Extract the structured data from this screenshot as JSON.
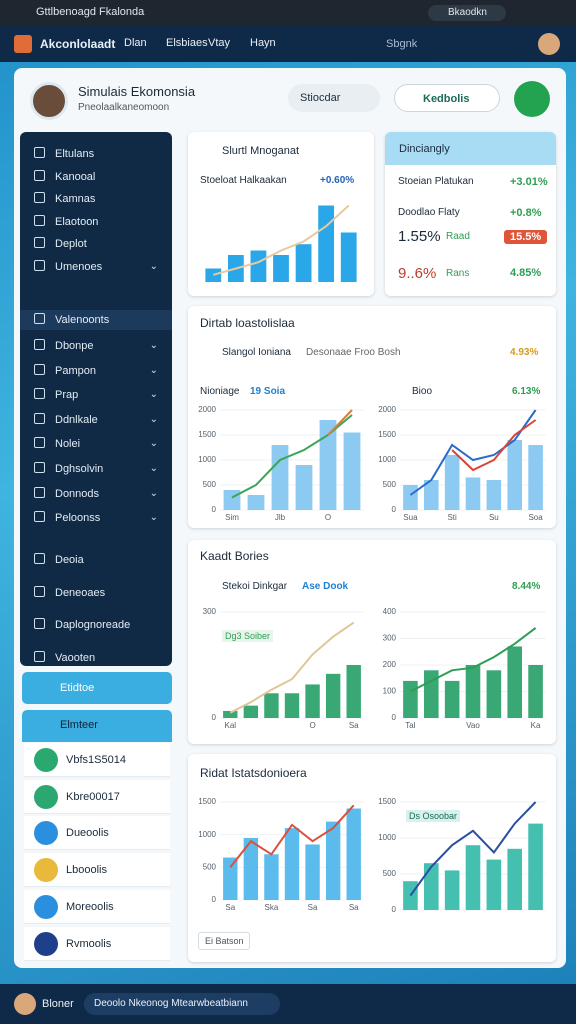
{
  "browser": {
    "tab": "Gttlbenoagd Fkalonda",
    "profile": "Bkaodkn"
  },
  "nav": {
    "brand": "Akconlolaadt",
    "links": [
      "Dlan",
      "Elsbiaes",
      "Vtay",
      "Hayn"
    ],
    "search": "Sbgnk"
  },
  "header": {
    "title": "Simulais Ekomonsia",
    "subtitle": "Pneolaalkaneomoon",
    "button": "Stiocdar",
    "select": "Kedbolis"
  },
  "sidebar": {
    "items": [
      "Eltulans",
      "Kanooal",
      "Kamnas",
      "Elaotoon",
      "Deplot",
      "Umenoes"
    ],
    "section": "Valenoonts",
    "groups": [
      "Dbonpe",
      "Pampon",
      "Prap",
      "Ddnlkale",
      "Nolei",
      "Dghsolvin",
      "Donnods",
      "Peloonss"
    ],
    "extra": [
      "Deoia",
      "Deneoaes",
      "Daplognoreade",
      "Vaooten"
    ]
  },
  "cards": {
    "active": "Etidtoe",
    "header": "Elmteer",
    "items": [
      "Vbfs1S5014",
      "Kbre00017",
      "Dueoolis",
      "Lbooolis",
      "Moreoolis",
      "Rvmoolis"
    ]
  },
  "panels": [
    {
      "title": "Slurtl Mnoganat",
      "label": "Stoeloat Halkaakan",
      "change": "+0.60%",
      "chart": {
        "type": "bar",
        "categories": [
          null,
          null,
          null,
          null,
          null,
          null,
          null
        ],
        "ylim": [
          0,
          100
        ],
        "series": [
          {
            "type": "bar",
            "color": "#2aa7e8",
            "values": [
              15,
              30,
              35,
              30,
              42,
              85,
              55
            ]
          },
          {
            "type": "line",
            "color": "#e8c9a0",
            "values": [
              8,
              15,
              22,
              35,
              45,
              62,
              85
            ]
          }
        ]
      }
    },
    {
      "title": "Dinciangly",
      "rows": [
        {
          "label": "Stoeian Platukan",
          "value": "+3.01%"
        },
        {
          "label": "Doodlao Flaty",
          "value": "+0.8%"
        },
        {
          "label": "1.55%",
          "tag": "Raad",
          "value": "15.5%"
        },
        {
          "label": "9..6%",
          "tag": "Rans",
          "value": "4.85%"
        }
      ]
    },
    {
      "title": "Dirtab loastolislaa",
      "subtitle": "Slangol Ioniana",
      "note": "Desonaae Froo Bosh",
      "change": "4.93%",
      "charts": [
        {
          "type": "bar",
          "label": "Nioniage",
          "tag": "19 Soia",
          "categories": [
            "Sim",
            null,
            "Jlb",
            null,
            "O",
            null
          ],
          "ylim": [
            0,
            2000
          ],
          "yticks": [
            0,
            500,
            1000,
            1500,
            2000
          ],
          "series": [
            {
              "type": "bar",
              "color": "#8ccaf2",
              "values": [
                400,
                300,
                1300,
                900,
                1800,
                1550
              ]
            },
            {
              "type": "line",
              "color": "#3aa655",
              "values": [
                250,
                500,
                1000,
                1200,
                1500,
                1900
              ]
            },
            {
              "type": "line",
              "color": "#e07a3a",
              "values": [
                null,
                null,
                null,
                null,
                1500,
                2000
              ]
            }
          ]
        },
        {
          "type": "bar",
          "label": "Bioo",
          "change": "6.13%",
          "categories": [
            "Sua",
            null,
            "Sti",
            null,
            "Su",
            null,
            "Soa"
          ],
          "ylim": [
            0,
            2000
          ],
          "yticks": [
            0,
            500,
            1000,
            1500,
            2000
          ],
          "series": [
            {
              "type": "bar",
              "color": "#8ccaf2",
              "values": [
                500,
                600,
                1100,
                650,
                600,
                1400,
                1300
              ]
            },
            {
              "type": "line",
              "color": "#2a6ccc",
              "values": [
                300,
                600,
                1300,
                1000,
                1100,
                1400,
                2000
              ]
            },
            {
              "type": "line",
              "color": "#d9443a",
              "values": [
                null,
                null,
                1200,
                800,
                1000,
                1500,
                1800
              ]
            }
          ]
        }
      ]
    },
    {
      "title": "Kaadt Bories",
      "subtitle": "Stekoi Dinkgar",
      "tag": "Ase Dook",
      "change": "8.44%",
      "charts": [
        {
          "type": "bar",
          "legend": "Dg3 Soiber",
          "categories": [
            "Kal",
            null,
            null,
            null,
            "O",
            null,
            "Sa"
          ],
          "ylim": [
            0,
            300
          ],
          "yticks": [
            0,
            300
          ],
          "series": [
            {
              "type": "bar",
              "color": "#3aa874",
              "values": [
                20,
                35,
                70,
                70,
                95,
                125,
                150
              ]
            },
            {
              "type": "line",
              "color": "#e0c59a",
              "values": [
                15,
                45,
                80,
                110,
                180,
                230,
                270
              ]
            }
          ]
        },
        {
          "type": "bar",
          "categories": [
            "Tal",
            null,
            null,
            "Vao",
            null,
            null,
            "Ka"
          ],
          "ylim": [
            0,
            400
          ],
          "yticks": [
            0,
            100,
            200,
            300,
            400
          ],
          "series": [
            {
              "type": "bar",
              "color": "#3aa874",
              "values": [
                140,
                180,
                140,
                200,
                180,
                270,
                200
              ]
            },
            {
              "type": "line",
              "color": "#2e9e54",
              "values": [
                100,
                140,
                180,
                190,
                230,
                280,
                340
              ]
            }
          ]
        }
      ]
    },
    {
      "title": "Ridat Istatsdonioera",
      "button": "Ei Batson",
      "charts": [
        {
          "type": "bar",
          "categories": [
            "Sa",
            null,
            "Ska",
            null,
            "Sa",
            null,
            "Sa"
          ],
          "ylim": [
            0,
            1500
          ],
          "yticks": [
            0,
            500,
            1000,
            1500
          ],
          "series": [
            {
              "type": "bar",
              "color": "#5cbbed",
              "values": [
                650,
                950,
                700,
                1100,
                850,
                1200,
                1400
              ]
            },
            {
              "type": "line",
              "color": "#d9513a",
              "values": [
                500,
                900,
                700,
                1150,
                900,
                1100,
                1450
              ]
            }
          ]
        },
        {
          "type": "bar",
          "legend": "Ds Osoobar",
          "categories": [
            null,
            null,
            null,
            null,
            null,
            null,
            null
          ],
          "ylim": [
            0,
            1500
          ],
          "yticks": [
            0,
            500,
            1000,
            1500
          ],
          "series": [
            {
              "type": "bar",
              "color": "#45bfb0",
              "values": [
                400,
                650,
                550,
                900,
                700,
                850,
                1200
              ]
            },
            {
              "type": "line",
              "color": "#2a4fa0",
              "values": [
                200,
                600,
                900,
                1100,
                800,
                1200,
                1500
              ]
            }
          ]
        }
      ]
    }
  ],
  "footer": {
    "user": "Bloner",
    "select": "Deoolo Nkeonog Mtearwbeatbiann"
  }
}
